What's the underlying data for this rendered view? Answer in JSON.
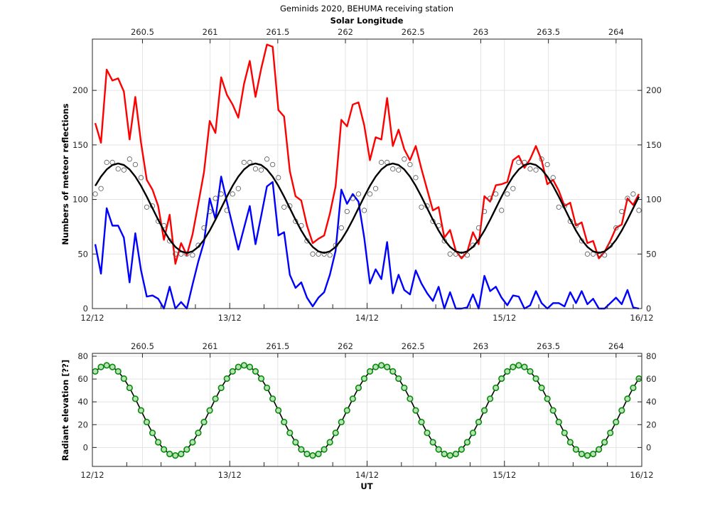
{
  "chart_data": [
    {
      "type": "line",
      "title": "Geminids 2020, BEHUMA receiving station",
      "top_axis": {
        "label": "Solar Longitude",
        "ticks": [
          "260.5",
          "261",
          "261.5",
          "262",
          "262.5",
          "263",
          "263.5",
          "264"
        ],
        "range": [
          260.13,
          264.19
        ]
      },
      "xlabel": "",
      "x_ticks": [
        "12/12",
        "13/12",
        "14/12",
        "15/12",
        "16/12"
      ],
      "x": {
        "start": "12/12 00:30 UT",
        "step_hours": 1
      },
      "ylabel": "Numbers of meteor reflections",
      "ylim": [
        0,
        247
      ],
      "y_ticks": [
        0,
        50,
        100,
        150,
        200
      ],
      "grid": true,
      "series": [
        {
          "color": "#ff0000",
          "style": "line",
          "values": [
            170,
            152,
            219,
            209,
            211,
            199,
            155,
            194,
            152,
            118,
            109,
            94,
            63,
            86,
            41,
            60,
            49,
            68,
            96,
            125,
            172,
            161,
            212,
            196,
            187,
            175,
            206,
            227,
            194,
            220,
            242,
            240,
            182,
            176,
            126,
            103,
            99,
            76,
            60,
            64,
            67,
            87,
            112,
            173,
            167,
            187,
            189,
            168,
            136,
            157,
            155,
            193,
            149,
            164,
            146,
            136,
            149,
            128,
            109,
            90,
            93,
            65,
            72,
            53,
            46,
            52,
            70,
            59,
            103,
            98,
            113,
            114,
            116,
            136,
            140,
            129,
            137,
            149,
            136,
            114,
            118,
            108,
            94,
            97,
            76,
            79,
            60,
            62,
            46,
            52,
            62,
            74,
            77,
            101,
            95,
            105
          ]
        },
        {
          "color": "#0000ff",
          "style": "line",
          "values": [
            59,
            32,
            92,
            76,
            76,
            65,
            24,
            69,
            35,
            11,
            12,
            9,
            0,
            20,
            0,
            6,
            0,
            22,
            43,
            61,
            101,
            82,
            121,
            98,
            76,
            54,
            74,
            94,
            59,
            85,
            112,
            116,
            67,
            70,
            31,
            19,
            24,
            10,
            2,
            10,
            15,
            31,
            53,
            109,
            96,
            105,
            98,
            65,
            23,
            36,
            27,
            61,
            14,
            31,
            17,
            13,
            35,
            23,
            14,
            7,
            20,
            0,
            15,
            0,
            0,
            1,
            13,
            0,
            30,
            16,
            20,
            10,
            3,
            12,
            11,
            0,
            3,
            16,
            5,
            0,
            5,
            5,
            2,
            15,
            5,
            16,
            4,
            9,
            0,
            0,
            5,
            10,
            4,
            17,
            1,
            0
          ]
        },
        {
          "color": "#555555",
          "style": "hollow-circle",
          "values": [
            105,
            110,
            134,
            134,
            128,
            127,
            137,
            132,
            120,
            93,
            94,
            80,
            76,
            62,
            50,
            50,
            50,
            49,
            58,
            74,
            89,
            101,
            105,
            90,
            105,
            110,
            134,
            134,
            128,
            127,
            137,
            132,
            120,
            93,
            94,
            80,
            76,
            62,
            50,
            50,
            50,
            49,
            58,
            74,
            89,
            101,
            105,
            90,
            105,
            110,
            134,
            134,
            128,
            127,
            137,
            132,
            120,
            93,
            94,
            80,
            76,
            62,
            50,
            50,
            50,
            49,
            58,
            74,
            89,
            101,
            105,
            90,
            105,
            110,
            134,
            134,
            128,
            127,
            137,
            132,
            120,
            93,
            94,
            80,
            76,
            62,
            50,
            50,
            50,
            49,
            58,
            74,
            89,
            101,
            105,
            90
          ]
        },
        {
          "color": "#000000",
          "style": "fit-line",
          "values": [
            112.5,
            121,
            127.5,
            131.6,
            133,
            131.6,
            127.5,
            121,
            112.5,
            102.6,
            92,
            81.4,
            71.5,
            63,
            56.5,
            52.4,
            51,
            52.4,
            56.5,
            63,
            71.5,
            81.4,
            92,
            102.6,
            112.5,
            121,
            127.5,
            131.6,
            133,
            131.6,
            127.5,
            121,
            112.5,
            102.6,
            92,
            81.4,
            71.5,
            63,
            56.5,
            52.4,
            51,
            52.4,
            56.5,
            63,
            71.5,
            81.4,
            92,
            102.6,
            112.5,
            121,
            127.5,
            131.6,
            133,
            131.6,
            127.5,
            121,
            112.5,
            102.6,
            92,
            81.4,
            71.5,
            63,
            56.5,
            52.4,
            51,
            52.4,
            56.5,
            63,
            71.5,
            81.4,
            92,
            102.6,
            112.5,
            121,
            127.5,
            131.6,
            133,
            131.6,
            127.5,
            121,
            112.5,
            102.6,
            92,
            81.4,
            71.5,
            63,
            56.5,
            52.4,
            51,
            52.4,
            56.5,
            63,
            71.5,
            81.4,
            92,
            102.6
          ]
        }
      ]
    },
    {
      "type": "line",
      "top_axis": {
        "ticks": [
          "260.5",
          "261",
          "261.5",
          "262",
          "262.5",
          "263",
          "263.5",
          "264"
        ],
        "range": [
          260.13,
          264.19
        ]
      },
      "xlabel": "UT",
      "x_ticks": [
        "12/12",
        "13/12",
        "14/12",
        "15/12",
        "16/12"
      ],
      "x": {
        "start": "12/12 00:30 UT",
        "step_hours": 1
      },
      "ylabel": "Radiant elevation [??]",
      "ylim": [
        -16.6,
        82.5
      ],
      "y_ticks": [
        0,
        20,
        40,
        60,
        80
      ],
      "grid": true,
      "series": [
        {
          "color": "#0a8a0a",
          "fill": "#b8e2b8",
          "style": "line-with-circles",
          "values": [
            66.7,
            70.6,
            72,
            70.6,
            66.7,
            60.4,
            52.3,
            42.7,
            32.5,
            22.3,
            12.8,
            4.6,
            -1.7,
            -5.7,
            -7,
            -5.7,
            -1.7,
            4.6,
            12.8,
            22.3,
            32.5,
            42.7,
            52.3,
            60.4,
            66.7,
            70.6,
            72,
            70.6,
            66.7,
            60.4,
            52.3,
            42.7,
            32.5,
            22.3,
            12.8,
            4.6,
            -1.7,
            -5.7,
            -7,
            -5.7,
            -1.7,
            4.6,
            12.8,
            22.3,
            32.5,
            42.7,
            52.3,
            60.4,
            66.7,
            70.6,
            72,
            70.6,
            66.7,
            60.4,
            52.3,
            42.7,
            32.5,
            22.3,
            12.8,
            4.6,
            -1.7,
            -5.7,
            -7,
            -5.7,
            -1.7,
            4.6,
            12.8,
            22.3,
            32.5,
            42.7,
            52.3,
            60.4,
            66.7,
            70.6,
            72,
            70.6,
            66.7,
            60.4,
            52.3,
            42.7,
            32.5,
            22.3,
            12.8,
            4.6,
            -1.7,
            -5.7,
            -7,
            -5.7,
            -1.7,
            4.6,
            12.8,
            22.3,
            32.5,
            42.7,
            52.3,
            60.4
          ]
        }
      ]
    }
  ]
}
